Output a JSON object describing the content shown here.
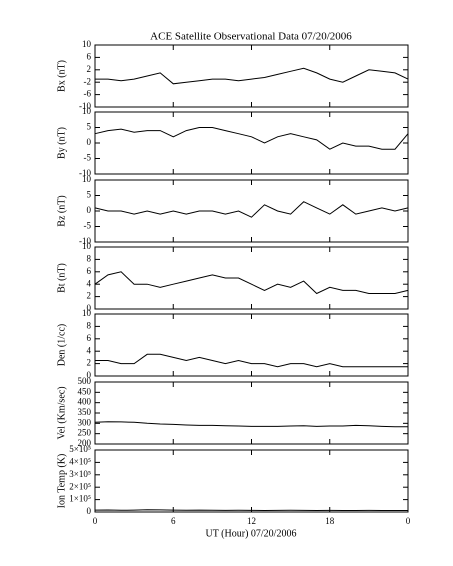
{
  "chart_data": [
    {
      "type": "line",
      "title": "ACE Satellite Observational Data   07/20/2006",
      "ylabel": "Bx (nT)",
      "x": [
        0,
        1,
        2,
        3,
        4,
        5,
        6,
        7,
        8,
        9,
        10,
        11,
        12,
        13,
        14,
        15,
        16,
        17,
        18,
        19,
        20,
        21,
        22,
        23,
        24
      ],
      "series": [
        {
          "name": "Bx",
          "color": "#000000",
          "values": [
            -1,
            -1,
            -1.5,
            -1,
            0,
            1,
            -2.5,
            -2,
            -1.5,
            -1,
            -1,
            -1.5,
            -1,
            -0.5,
            0.5,
            1.5,
            2.5,
            1,
            -1,
            -2,
            0,
            2,
            1.5,
            1,
            -1
          ]
        }
      ],
      "xlim": [
        0,
        24
      ],
      "ylim": [
        -10,
        10
      ],
      "yticks": [
        -10,
        -6,
        -2,
        2,
        6,
        10
      ]
    },
    {
      "type": "line",
      "ylabel": "By (nT)",
      "x": [
        0,
        1,
        2,
        3,
        4,
        5,
        6,
        7,
        8,
        9,
        10,
        11,
        12,
        13,
        14,
        15,
        16,
        17,
        18,
        19,
        20,
        21,
        22,
        23,
        24
      ],
      "series": [
        {
          "name": "By",
          "color": "#000000",
          "values": [
            3,
            4,
            4.5,
            3.5,
            4,
            4,
            2,
            4,
            5,
            5,
            4,
            3,
            2,
            0,
            2,
            3,
            2,
            1,
            -2,
            0,
            -1,
            -1,
            -2,
            -2,
            3
          ]
        }
      ],
      "xlim": [
        0,
        24
      ],
      "ylim": [
        -10,
        10
      ],
      "yticks": [
        -10,
        -5,
        0,
        5,
        10
      ]
    },
    {
      "type": "line",
      "ylabel": "Bz (nT)",
      "x": [
        0,
        1,
        2,
        3,
        4,
        5,
        6,
        7,
        8,
        9,
        10,
        11,
        12,
        13,
        14,
        15,
        16,
        17,
        18,
        19,
        20,
        21,
        22,
        23,
        24
      ],
      "series": [
        {
          "name": "Bz",
          "color": "#000000",
          "values": [
            1,
            0,
            0,
            -1,
            0,
            -1,
            0,
            -1,
            0,
            0,
            -1,
            0,
            -2,
            2,
            0,
            -1,
            3,
            1,
            -1,
            2,
            -1,
            0,
            1,
            0,
            1
          ]
        }
      ],
      "xlim": [
        0,
        24
      ],
      "ylim": [
        -10,
        10
      ],
      "yticks": [
        -10,
        -5,
        0,
        5,
        10
      ]
    },
    {
      "type": "line",
      "ylabel": "Bt (nT)",
      "x": [
        0,
        1,
        2,
        3,
        4,
        5,
        6,
        7,
        8,
        9,
        10,
        11,
        12,
        13,
        14,
        15,
        16,
        17,
        18,
        19,
        20,
        21,
        22,
        23,
        24
      ],
      "series": [
        {
          "name": "Bt",
          "color": "#000000",
          "values": [
            4,
            5.5,
            6,
            4,
            4,
            3.5,
            4,
            4.5,
            5,
            5.5,
            5,
            5,
            4,
            3,
            4,
            3.5,
            4.5,
            2.5,
            3.5,
            3,
            3,
            2.5,
            2.5,
            2.5,
            3
          ]
        }
      ],
      "xlim": [
        0,
        24
      ],
      "ylim": [
        0,
        10
      ],
      "yticks": [
        0,
        2,
        4,
        6,
        8,
        10
      ]
    },
    {
      "type": "line",
      "ylabel": "Den (1/cc)",
      "x": [
        0,
        1,
        2,
        3,
        4,
        5,
        6,
        7,
        8,
        9,
        10,
        11,
        12,
        13,
        14,
        15,
        16,
        17,
        18,
        19,
        20,
        21,
        22,
        23,
        24
      ],
      "series": [
        {
          "name": "Den",
          "color": "#000000",
          "values": [
            2.5,
            2.5,
            2,
            2,
            3.5,
            3.5,
            3,
            2.5,
            3,
            2.5,
            2,
            2.5,
            2,
            2,
            1.5,
            2,
            2,
            1.5,
            2,
            1.5,
            1.5,
            1.5,
            1.5,
            1.5,
            1.5
          ]
        }
      ],
      "xlim": [
        0,
        24
      ],
      "ylim": [
        0,
        10
      ],
      "yticks": [
        0,
        2,
        4,
        6,
        8,
        10
      ]
    },
    {
      "type": "line",
      "ylabel": "Vel (Km/sec)",
      "x": [
        0,
        1,
        2,
        3,
        4,
        5,
        6,
        7,
        8,
        9,
        10,
        11,
        12,
        13,
        14,
        15,
        16,
        17,
        18,
        19,
        20,
        21,
        22,
        23,
        24
      ],
      "series": [
        {
          "name": "Vel",
          "color": "#000000",
          "values": [
            305,
            308,
            307,
            305,
            300,
            297,
            295,
            292,
            290,
            290,
            288,
            287,
            285,
            285,
            285,
            287,
            288,
            285,
            287,
            287,
            290,
            288,
            285,
            283,
            283
          ]
        }
      ],
      "xlim": [
        0,
        24
      ],
      "ylim": [
        200,
        500
      ],
      "yticks": [
        200,
        250,
        300,
        350,
        400,
        450,
        500
      ]
    },
    {
      "type": "line",
      "ylabel": "Ion Temp (K)",
      "xlabel": "UT (Hour)   07/20/2006",
      "x": [
        0,
        1,
        2,
        3,
        4,
        5,
        6,
        7,
        8,
        9,
        10,
        11,
        12,
        13,
        14,
        15,
        16,
        17,
        18,
        19,
        20,
        21,
        22,
        23,
        24
      ],
      "series": [
        {
          "name": "Temp",
          "color": "#000000",
          "values": [
            15000,
            16000,
            14000,
            15000,
            18000,
            17000,
            15000,
            14000,
            15000,
            14000,
            13000,
            14000,
            13000,
            12000,
            13000,
            14000,
            13000,
            12000,
            13000,
            12000,
            12000,
            13000,
            12000,
            12000,
            12000
          ]
        }
      ],
      "xlim": [
        0,
        24
      ],
      "ylim": [
        0,
        500000
      ],
      "yticks": [
        0,
        {
          "value": 100000,
          "label": "1×10⁵"
        },
        {
          "value": 200000,
          "label": "2×10⁵"
        },
        {
          "value": 300000,
          "label": "3×10⁵"
        },
        {
          "value": 400000,
          "label": "4×10⁵"
        },
        {
          "value": 500000,
          "label": "5×10⁵"
        }
      ],
      "xticks": [
        0,
        6,
        12,
        18,
        {
          "value": 24,
          "label": "0"
        }
      ]
    }
  ]
}
